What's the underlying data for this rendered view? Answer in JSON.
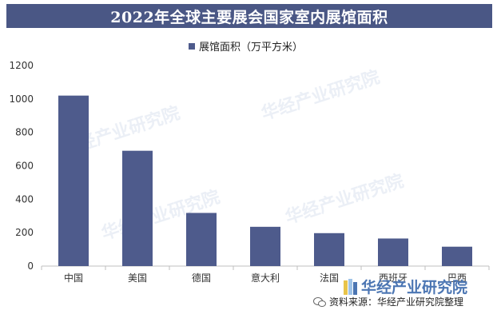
{
  "chart_data": {
    "type": "bar",
    "title": "2022年全球主要展会国家室内展馆面积",
    "categories": [
      "中国",
      "美国",
      "德国",
      "意大利",
      "法国",
      "西班牙",
      "巴西"
    ],
    "series": [
      {
        "name": "展馆面积（万平方米）",
        "values": [
          1020,
          690,
          318,
          235,
          197,
          165,
          116
        ]
      }
    ],
    "ylim": [
      0,
      1200
    ],
    "yticks": [
      0,
      200,
      400,
      600,
      800,
      1000,
      1200
    ],
    "grid": false,
    "legend": "top-center",
    "colors": {
      "bar": "#4e5b8c",
      "title_bg": "#4a5785",
      "axis": "#bfbfbf"
    }
  },
  "source": "资料来源：华经产业研究院整理",
  "watermark": "华经产业研究院"
}
